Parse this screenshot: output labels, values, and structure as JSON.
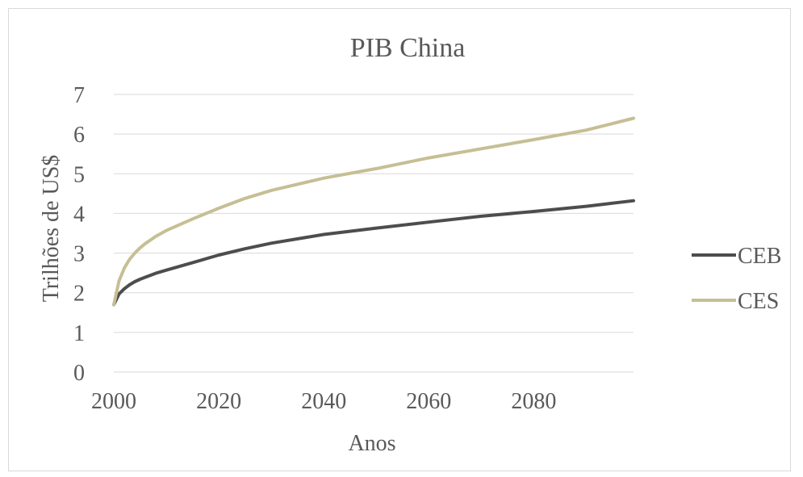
{
  "chart_data": {
    "type": "line",
    "title": "PIB China",
    "xlabel": "Anos",
    "ylabel": "Trilhões de US$",
    "xlim": [
      2000,
      2099
    ],
    "ylim": [
      0,
      7
    ],
    "x_ticks": [
      2000,
      2020,
      2040,
      2060,
      2080
    ],
    "y_ticks": [
      0,
      1,
      2,
      3,
      4,
      5,
      6,
      7
    ],
    "grid": true,
    "legend_position": "right",
    "x": [
      2000,
      2001,
      2002,
      2003,
      2004,
      2005,
      2006,
      2008,
      2010,
      2015,
      2020,
      2025,
      2030,
      2040,
      2050,
      2060,
      2070,
      2080,
      2090,
      2099
    ],
    "series": [
      {
        "name": "CEB",
        "color": "#4d4d4d",
        "values": [
          1.7,
          1.97,
          2.1,
          2.2,
          2.28,
          2.34,
          2.39,
          2.49,
          2.57,
          2.76,
          2.95,
          3.11,
          3.25,
          3.47,
          3.63,
          3.78,
          3.93,
          4.05,
          4.18,
          4.32
        ]
      },
      {
        "name": "CES",
        "color": "#c6bf94",
        "values": [
          1.7,
          2.3,
          2.62,
          2.84,
          3.0,
          3.13,
          3.24,
          3.42,
          3.57,
          3.86,
          4.13,
          4.38,
          4.58,
          4.89,
          5.13,
          5.4,
          5.63,
          5.86,
          6.1,
          6.4
        ]
      }
    ]
  }
}
